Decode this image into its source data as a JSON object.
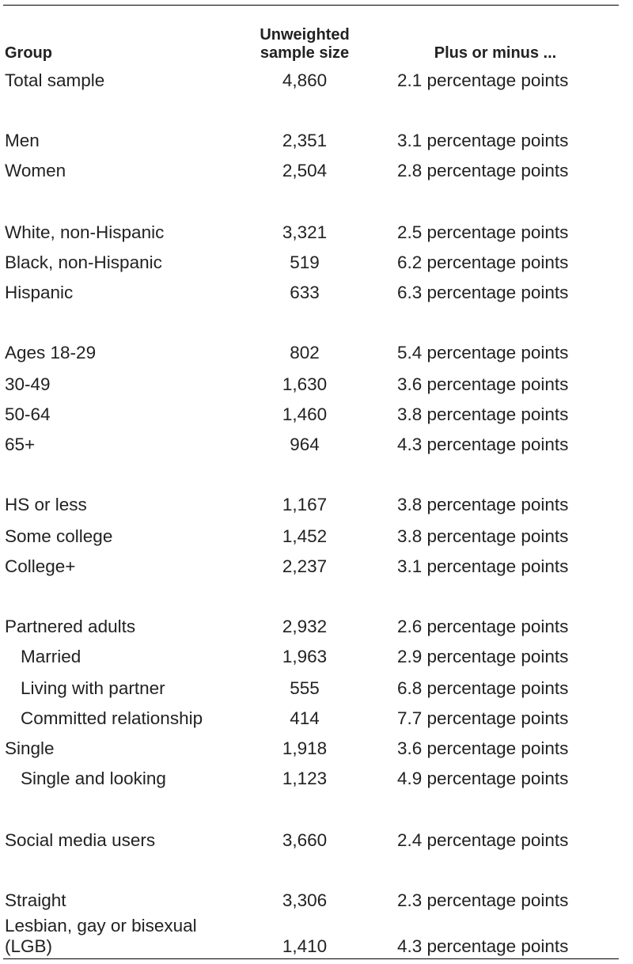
{
  "header": {
    "group": "Group",
    "sample_size": "Unweighted sample size",
    "margin": "Plus or minus ..."
  },
  "rows": [
    {
      "group": "Total sample",
      "n": "4,860",
      "moe": "2.1 percentage points"
    },
    {
      "group": "Men",
      "n": "2,351",
      "moe": "3.1 percentage points"
    },
    {
      "group": "Women",
      "n": "2,504",
      "moe": "2.8 percentage points"
    },
    {
      "group": "White, non-Hispanic",
      "n": "3,321",
      "moe": "2.5 percentage points"
    },
    {
      "group": "Black, non-Hispanic",
      "n": "519",
      "moe": "6.2 percentage points"
    },
    {
      "group": "Hispanic",
      "n": "633",
      "moe": "6.3 percentage points"
    },
    {
      "group": "Ages 18-29",
      "n": "802",
      "moe": "5.4 percentage points"
    },
    {
      "group": "30-49",
      "n": "1,630",
      "moe": "3.6 percentage points"
    },
    {
      "group": "50-64",
      "n": "1,460",
      "moe": "3.8 percentage points"
    },
    {
      "group": "65+",
      "n": "964",
      "moe": "4.3 percentage points"
    },
    {
      "group": "HS or less",
      "n": "1,167",
      "moe": "3.8 percentage points"
    },
    {
      "group": "Some college",
      "n": "1,452",
      "moe": "3.8 percentage points"
    },
    {
      "group": "College+",
      "n": "2,237",
      "moe": "3.1 percentage points"
    },
    {
      "group": "Partnered adults",
      "n": "2,932",
      "moe": "2.6 percentage points"
    },
    {
      "group": "Married",
      "n": "1,963",
      "moe": "2.9 percentage points"
    },
    {
      "group": "Living with partner",
      "n": "555",
      "moe": "6.8 percentage points"
    },
    {
      "group": "Committed relationship",
      "n": "414",
      "moe": "7.7 percentage points"
    },
    {
      "group": "Single",
      "n": "1,918",
      "moe": "3.6 percentage points"
    },
    {
      "group": "Single and looking",
      "n": "1,123",
      "moe": "4.9 percentage points"
    },
    {
      "group": "Social media users",
      "n": "3,660",
      "moe": "2.4 percentage points"
    },
    {
      "group": "Straight",
      "n": "3,306",
      "moe": "2.3 percentage points"
    },
    {
      "group": "Lesbian, gay or bisexual (LGB)",
      "n": "1,410",
      "moe": "4.3 percentage points"
    }
  ]
}
